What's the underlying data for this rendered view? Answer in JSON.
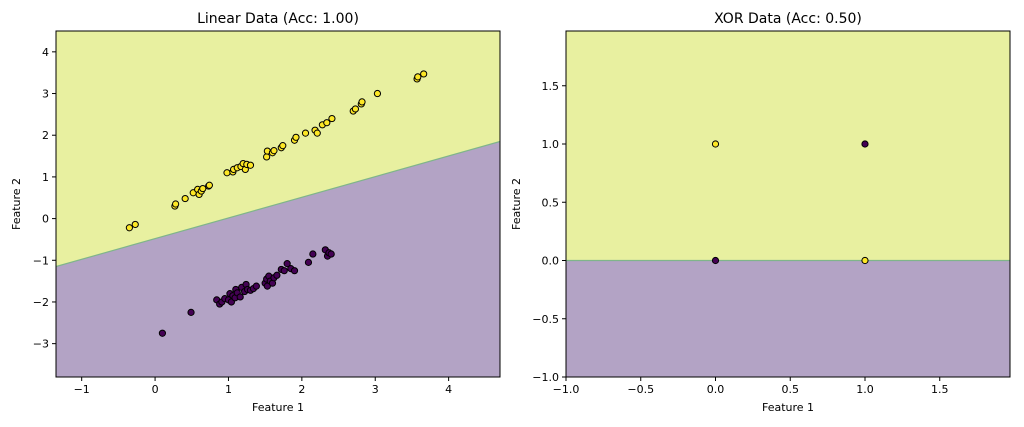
{
  "chart_data": [
    {
      "type": "scatter",
      "title": "Linear Data (Acc: 1.00)",
      "xlabel": "Feature 1",
      "ylabel": "Feature 2",
      "xlim": [
        -1.35,
        4.7
      ],
      "ylim": [
        -3.8,
        4.5
      ],
      "xticks": [
        -1,
        0,
        1,
        2,
        3,
        4
      ],
      "xtick_labels": [
        "−1",
        "0",
        "1",
        "2",
        "3",
        "4"
      ],
      "yticks": [
        -3,
        -2,
        -1,
        0,
        1,
        2,
        3,
        4
      ],
      "ytick_labels": [
        "−3",
        "−2",
        "−1",
        "0",
        "1",
        "2",
        "3",
        "4"
      ],
      "grid": false,
      "decision_boundary": {
        "x": [
          -1.35,
          4.7
        ],
        "y": [
          -1.15,
          1.85
        ]
      },
      "regions": {
        "upper_color": "#e8f0a0",
        "lower_color": "#b3a3c5",
        "boundary_color": "#7fb58a"
      },
      "series": [
        {
          "color": "#fde725",
          "points": [
            [
              -0.35,
              -0.22
            ],
            [
              -0.27,
              -0.14
            ],
            [
              0.27,
              0.3
            ],
            [
              0.28,
              0.35
            ],
            [
              0.41,
              0.48
            ],
            [
              0.52,
              0.62
            ],
            [
              0.58,
              0.7
            ],
            [
              0.6,
              0.58
            ],
            [
              0.63,
              0.66
            ],
            [
              0.65,
              0.72
            ],
            [
              0.73,
              0.78
            ],
            [
              0.74,
              0.8
            ],
            [
              0.98,
              1.1
            ],
            [
              1.06,
              1.12
            ],
            [
              1.07,
              1.18
            ],
            [
              1.12,
              1.22
            ],
            [
              1.17,
              1.25
            ],
            [
              1.2,
              1.32
            ],
            [
              1.23,
              1.18
            ],
            [
              1.25,
              1.3
            ],
            [
              1.3,
              1.28
            ],
            [
              1.52,
              1.48
            ],
            [
              1.53,
              1.62
            ],
            [
              1.6,
              1.58
            ],
            [
              1.62,
              1.63
            ],
            [
              1.72,
              1.7
            ],
            [
              1.74,
              1.75
            ],
            [
              1.9,
              1.88
            ],
            [
              1.92,
              1.95
            ],
            [
              2.05,
              2.05
            ],
            [
              2.18,
              2.12
            ],
            [
              2.21,
              2.05
            ],
            [
              2.28,
              2.25
            ],
            [
              2.34,
              2.3
            ],
            [
              2.41,
              2.4
            ],
            [
              2.7,
              2.58
            ],
            [
              2.73,
              2.63
            ],
            [
              2.81,
              2.75
            ],
            [
              2.82,
              2.8
            ],
            [
              3.03,
              3.0
            ],
            [
              3.57,
              3.35
            ],
            [
              3.58,
              3.4
            ],
            [
              3.66,
              3.47
            ]
          ]
        },
        {
          "color": "#440154",
          "points": [
            [
              0.1,
              -2.75
            ],
            [
              0.49,
              -2.25
            ],
            [
              0.84,
              -1.95
            ],
            [
              0.88,
              -2.05
            ],
            [
              0.91,
              -2.0
            ],
            [
              0.95,
              -1.92
            ],
            [
              1.0,
              -1.95
            ],
            [
              1.02,
              -1.8
            ],
            [
              1.04,
              -2.0
            ],
            [
              1.06,
              -1.85
            ],
            [
              1.09,
              -1.9
            ],
            [
              1.1,
              -1.7
            ],
            [
              1.12,
              -1.78
            ],
            [
              1.16,
              -1.88
            ],
            [
              1.18,
              -1.65
            ],
            [
              1.22,
              -1.75
            ],
            [
              1.24,
              -1.58
            ],
            [
              1.26,
              -1.7
            ],
            [
              1.3,
              -1.72
            ],
            [
              1.34,
              -1.68
            ],
            [
              1.38,
              -1.62
            ],
            [
              1.5,
              -1.55
            ],
            [
              1.52,
              -1.45
            ],
            [
              1.53,
              -1.62
            ],
            [
              1.55,
              -1.38
            ],
            [
              1.57,
              -1.5
            ],
            [
              1.6,
              -1.55
            ],
            [
              1.62,
              -1.42
            ],
            [
              1.66,
              -1.36
            ],
            [
              1.72,
              -1.22
            ],
            [
              1.76,
              -1.25
            ],
            [
              1.8,
              -1.08
            ],
            [
              1.85,
              -1.2
            ],
            [
              1.9,
              -1.25
            ],
            [
              2.09,
              -1.05
            ],
            [
              2.15,
              -0.85
            ],
            [
              2.32,
              -0.75
            ],
            [
              2.35,
              -0.9
            ],
            [
              2.37,
              -0.82
            ],
            [
              2.4,
              -0.85
            ]
          ]
        }
      ]
    },
    {
      "type": "scatter",
      "title": "XOR Data (Acc: 0.50)",
      "xlabel": "Feature 1",
      "ylabel": "Feature 2",
      "xlim": [
        -1.0,
        1.97
      ],
      "ylim": [
        -1.0,
        1.97
      ],
      "xticks": [
        -1.0,
        -0.5,
        0.0,
        0.5,
        1.0,
        1.5
      ],
      "xtick_labels": [
        "−1.0",
        "−0.5",
        "0.0",
        "0.5",
        "1.0",
        "1.5"
      ],
      "yticks": [
        -1.0,
        -0.5,
        0.0,
        0.5,
        1.0,
        1.5
      ],
      "ytick_labels": [
        "−1.0",
        "−0.5",
        "0.0",
        "0.5",
        "1.0",
        "1.5"
      ],
      "grid": false,
      "decision_boundary": {
        "x": [
          -1.0,
          1.97
        ],
        "y": [
          0.0,
          0.0
        ]
      },
      "regions": {
        "upper_color": "#e8f0a0",
        "lower_color": "#b3a3c5",
        "boundary_color": "#7fb58a"
      },
      "series": [
        {
          "color": "#fde725",
          "points": [
            [
              0,
              1
            ],
            [
              1,
              0
            ]
          ]
        },
        {
          "color": "#440154",
          "points": [
            [
              0,
              0
            ],
            [
              1,
              1
            ]
          ]
        }
      ]
    }
  ]
}
